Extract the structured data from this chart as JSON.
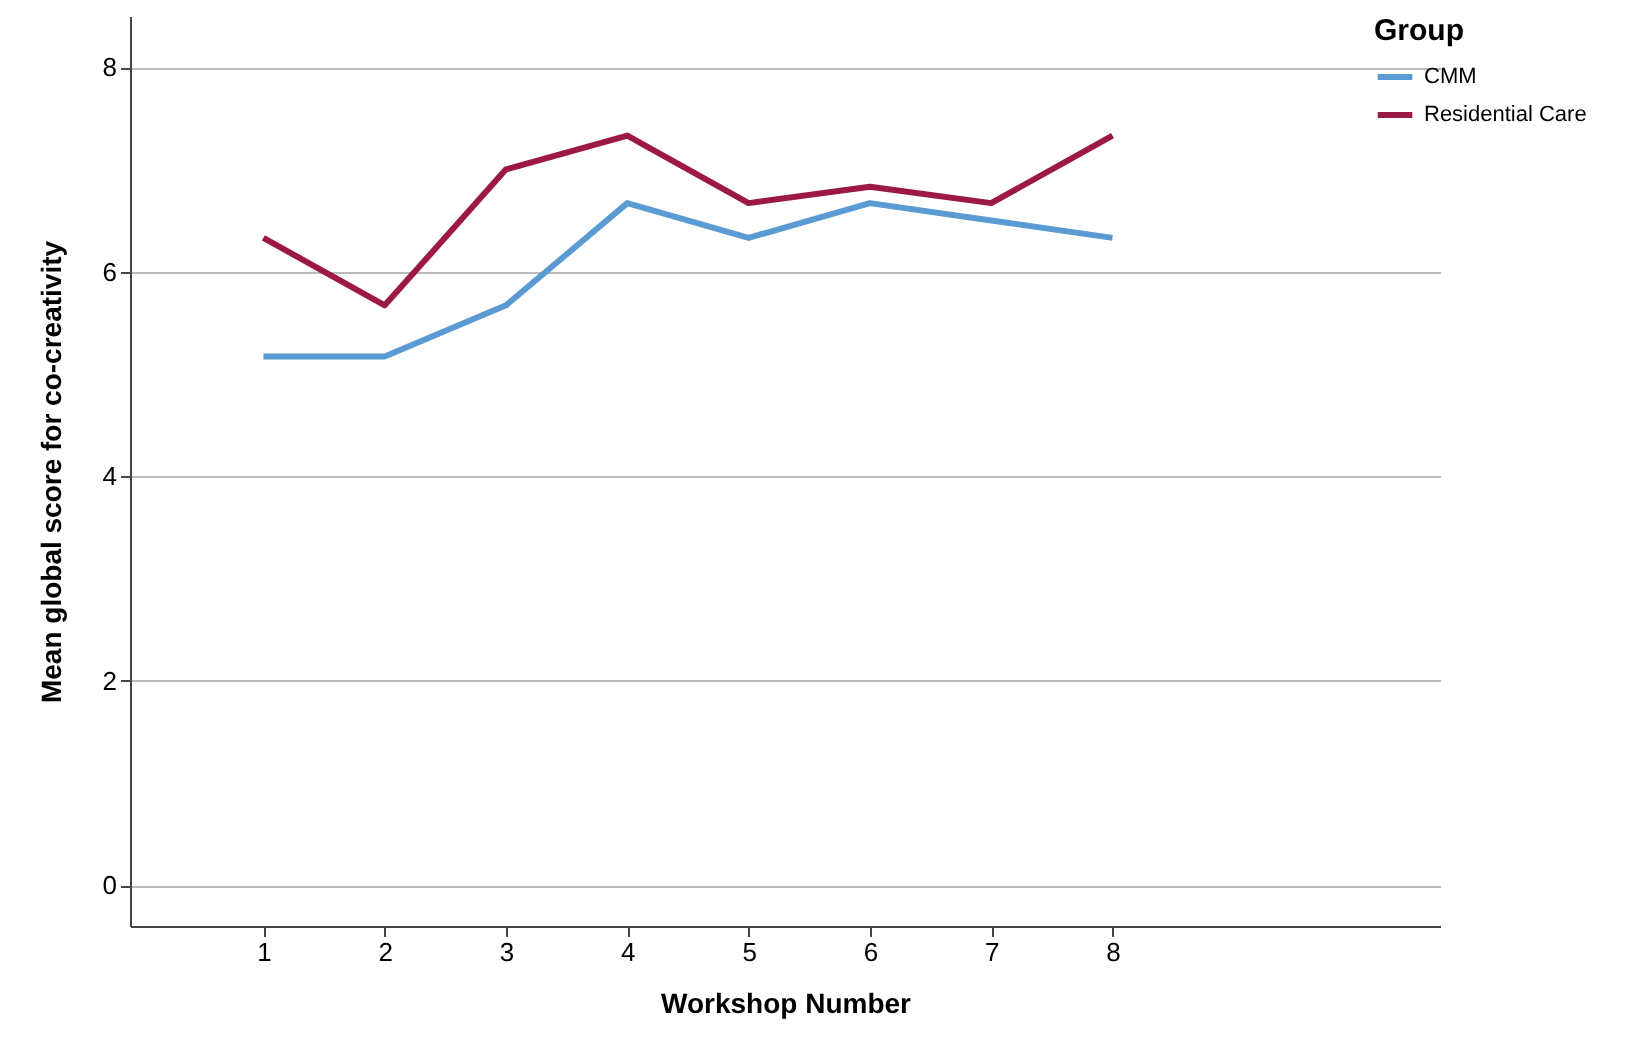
{
  "chart_data": {
    "type": "line",
    "xlabel": "Workshop Number",
    "ylabel": "Mean global score for co-creativity",
    "legend_title": "Group",
    "x": [
      1,
      2,
      3,
      4,
      5,
      6,
      7,
      8
    ],
    "series": [
      {
        "name": "CMM",
        "color": "#5a9bd3",
        "values": [
          5.17,
          5.17,
          5.67,
          6.67,
          6.33,
          6.67,
          6.5,
          6.33
        ]
      },
      {
        "name": "Residential Care",
        "color": "#9c1944",
        "values": [
          6.33,
          5.67,
          7.0,
          7.33,
          6.67,
          6.83,
          6.67,
          7.33
        ]
      }
    ],
    "xlim": [
      -0.1,
      10.7
    ],
    "xticks": [
      1,
      2,
      3,
      4,
      5,
      6,
      7,
      8
    ],
    "ylim": [
      -0.4,
      8.5
    ],
    "yticks": [
      0,
      2,
      4,
      6,
      8
    ],
    "grid": "y",
    "legend": "top right",
    "marker": "none",
    "line_style": "solid"
  }
}
